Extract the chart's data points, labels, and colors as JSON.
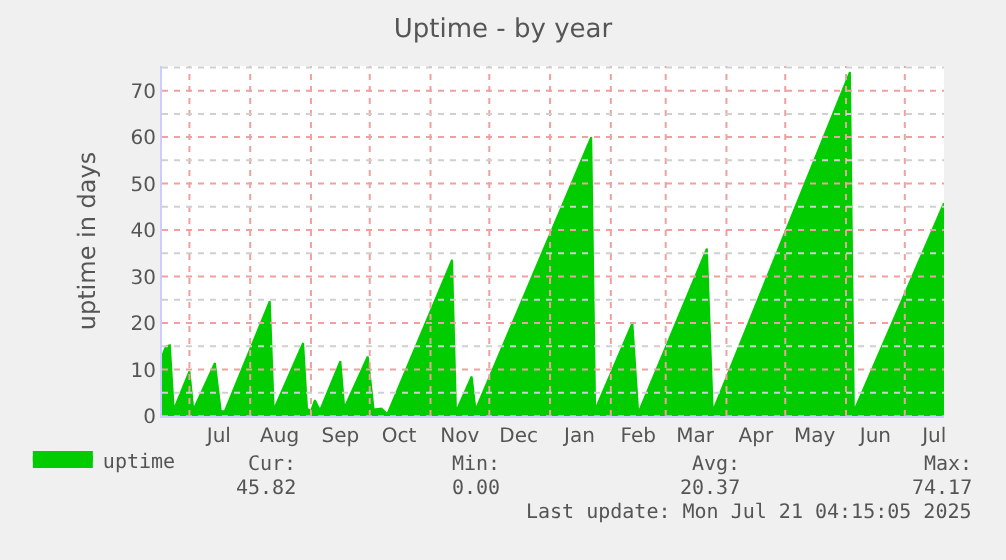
{
  "chart_data": {
    "type": "area",
    "title": "Uptime - by year",
    "ylabel": "uptime in days",
    "x": [
      "2024-06-17",
      "2024-06-19",
      "2024-06-21",
      "2024-06-23",
      "2024-07-01",
      "2024-07-03",
      "2024-07-14",
      "2024-07-17",
      "2024-07-19",
      "2024-08-11",
      "2024-08-13",
      "2024-08-28",
      "2024-08-30",
      "2024-09-01",
      "2024-09-03",
      "2024-09-05",
      "2024-09-06",
      "2024-09-16",
      "2024-09-18",
      "2024-09-30",
      "2024-10-03",
      "2024-10-07",
      "2024-10-10",
      "2024-11-12",
      "2024-11-14",
      "2024-11-22",
      "2024-11-24",
      "2025-01-22",
      "2025-01-24",
      "2025-02-12",
      "2025-02-15",
      "2025-03-22",
      "2025-03-25",
      "2025-06-03",
      "2025-06-05",
      "2025-07-21"
    ],
    "series": [
      {
        "name": "uptime",
        "color": "#00cc00",
        "values": [
          12.8,
          15,
          15.2,
          1.3,
          9.6,
          1.3,
          11.4,
          1,
          1,
          24.7,
          1.3,
          15.7,
          1.6,
          1,
          3.4,
          1.7,
          1.6,
          11.8,
          1.7,
          12.8,
          1.4,
          1.6,
          0.4,
          33.6,
          0.9,
          8.5,
          1.3,
          60,
          1.3,
          20,
          0.6,
          36,
          1,
          74,
          1,
          45.8
        ]
      }
    ],
    "xlim": [
      "2024-06-17",
      "2025-07-21"
    ],
    "xticks": [
      {
        "value": "2024-07-01",
        "label": null
      },
      {
        "value": "2024-07-16",
        "label": "Jul"
      },
      {
        "value": "2024-08-01",
        "label": null
      },
      {
        "value": "2024-08-16",
        "label": "Aug"
      },
      {
        "value": "2024-09-01",
        "label": null
      },
      {
        "value": "2024-09-16",
        "label": "Sep"
      },
      {
        "value": "2024-10-01",
        "label": null
      },
      {
        "value": "2024-10-16",
        "label": "Oct"
      },
      {
        "value": "2024-11-01",
        "label": null
      },
      {
        "value": "2024-11-16",
        "label": "Nov"
      },
      {
        "value": "2024-12-01",
        "label": null
      },
      {
        "value": "2024-12-16",
        "label": "Dec"
      },
      {
        "value": "2025-01-01",
        "label": null
      },
      {
        "value": "2025-01-16",
        "label": "Jan"
      },
      {
        "value": "2025-02-01",
        "label": null
      },
      {
        "value": "2025-02-15",
        "label": "Feb"
      },
      {
        "value": "2025-03-01",
        "label": null
      },
      {
        "value": "2025-03-16",
        "label": "Mar"
      },
      {
        "value": "2025-04-01",
        "label": null
      },
      {
        "value": "2025-04-16",
        "label": "Apr"
      },
      {
        "value": "2025-05-01",
        "label": null
      },
      {
        "value": "2025-05-16",
        "label": "May"
      },
      {
        "value": "2025-06-01",
        "label": null
      },
      {
        "value": "2025-06-16",
        "label": "Jun"
      },
      {
        "value": "2025-07-01",
        "label": null
      },
      {
        "value": "2025-07-16",
        "label": "Jul"
      }
    ],
    "ylim": [
      0,
      75.3
    ],
    "yticks": [
      0,
      {
        "value": 5,
        "label": null
      },
      10,
      {
        "value": 15,
        "label": null
      },
      20,
      {
        "value": 25,
        "label": null
      },
      30,
      {
        "value": 35,
        "label": null
      },
      40,
      {
        "value": 45,
        "label": null
      },
      50,
      {
        "value": 55,
        "label": null
      },
      60,
      {
        "value": 65,
        "label": null
      },
      70,
      {
        "value": 75,
        "label": null
      }
    ],
    "grid": true,
    "legend": "bottom left",
    "annotations": [
      "Cur:",
      "45.82",
      "Min:",
      "0.00",
      "Avg:",
      "20.37",
      "Max:",
      "74.17",
      "Last update: Mon Jul 21 04:15:05 2025"
    ]
  }
}
